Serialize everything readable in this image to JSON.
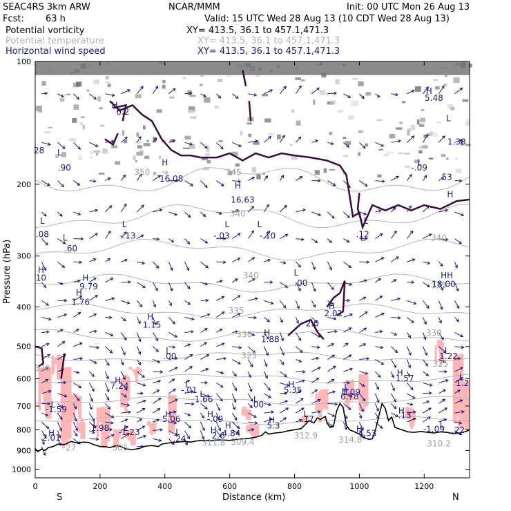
{
  "header": {
    "model": "SEAC4RS   3km ARW",
    "org": "NCAR/MMM",
    "init": "Init: 00 UTC Mon 26 Aug 13",
    "fcst_label": "Fcst:",
    "fcst_value": "63 h",
    "valid": "Valid: 15 UTC Wed 28 Aug 13 (10 CDT Wed 28 Aug 13)"
  },
  "fields": [
    {
      "name": "Potential vorticity",
      "xy": "XY= 413.5, 36.1 to 457.1,471.3",
      "color": "#000000"
    },
    {
      "name": "Potential temperature",
      "xy": "XY= 413.5, 36.1 to 457.1,471.3",
      "color": "#b4b4b4"
    },
    {
      "name": "Horizontal wind speed",
      "xy": "XY= 413.5, 36.1 to 457.1,471.3",
      "color": "#1a1a7a"
    }
  ],
  "colors": {
    "pv_contour": "#3d0a3d",
    "theta_contour": "#b4b4b4",
    "wind_vectors": "#1a1a7a",
    "shading": "#ffb6b6",
    "terrain": "#000000"
  },
  "chart_data": {
    "type": "vertical cross-section",
    "xlabel": "Distance (km)",
    "ylabel": "Pressure (hPa)",
    "xlim": [
      0,
      1340
    ],
    "ylim": [
      1050,
      100
    ],
    "y_scale": "log-pressure",
    "x_ticks": [
      "0",
      "200",
      "400",
      "600",
      "800",
      "1000",
      "1200"
    ],
    "y_ticks": [
      "100",
      "200",
      "300",
      "400",
      "500",
      "600",
      "700",
      "800",
      "900",
      "1000"
    ],
    "x_end_labels": {
      "left": "S",
      "right": "N"
    },
    "theta_contour_labels": [
      {
        "text": "350",
        "x": 330,
        "p": 190
      },
      {
        "text": "345",
        "x": 612,
        "p": 190
      },
      {
        "text": "340",
        "x": 625,
        "p": 240
      },
      {
        "text": "340",
        "x": 1245,
        "p": 275
      },
      {
        "text": "340",
        "x": 665,
        "p": 340
      },
      {
        "text": "335",
        "x": 1245,
        "p": 360
      },
      {
        "text": "335",
        "x": 620,
        "p": 415
      },
      {
        "text": "330",
        "x": 645,
        "p": 475
      },
      {
        "text": "330",
        "x": 1230,
        "p": 470
      },
      {
        "text": "325",
        "x": 660,
        "p": 535
      },
      {
        "text": "325",
        "x": 1250,
        "p": 560
      },
      {
        "text": "312.9",
        "x": 835,
        "p": 840
      },
      {
        "text": "314.8",
        "x": 972,
        "p": 860
      },
      {
        "text": "310.2",
        "x": 1245,
        "p": 880
      },
      {
        "text": "309.4",
        "x": 640,
        "p": 870
      },
      {
        "text": "311.8",
        "x": 550,
        "p": 875
      },
      {
        "text": "306",
        "x": 262,
        "p": 900
      },
      {
        "text": "326",
        "x": 22,
        "p": 575
      },
      {
        "text": "27",
        "x": 110,
        "p": 900
      }
    ],
    "extrema_labels": [
      {
        "text": "L",
        "x": 75,
        "p": 170
      },
      {
        "text": ".90",
        "x": 90,
        "p": 185
      },
      {
        "text": "28",
        "x": 12,
        "p": 168
      },
      {
        "text": "L",
        "x": 22,
        "p": 250
      },
      {
        "text": ".08",
        "x": 22,
        "p": 270
      },
      {
        "text": "L",
        "x": 92,
        "p": 275
      },
      {
        "text": ".60",
        "x": 110,
        "p": 292
      },
      {
        "text": "L",
        "x": 275,
        "p": 255
      },
      {
        "text": "-.13",
        "x": 285,
        "p": 272
      },
      {
        "text": "H",
        "x": 400,
        "p": 180
      },
      {
        "text": "16.08",
        "x": 420,
        "p": 197
      },
      {
        "text": "H",
        "x": 625,
        "p": 205
      },
      {
        "text": "16.63",
        "x": 640,
        "p": 222
      },
      {
        "text": "L",
        "x": 592,
        "p": 255
      },
      {
        "text": "-.03",
        "x": 575,
        "p": 272
      },
      {
        "text": "L",
        "x": 692,
        "p": 255
      },
      {
        "text": "-.10",
        "x": 717,
        "p": 272
      },
      {
        "text": "L",
        "x": 1020,
        "p": 250
      },
      {
        "text": ".12",
        "x": 1010,
        "p": 270
      },
      {
        "text": "L",
        "x": 805,
        "p": 335
      },
      {
        "text": ".00",
        "x": 820,
        "p": 355
      },
      {
        "text": "H",
        "x": 18,
        "p": 330
      },
      {
        "text": "10",
        "x": 18,
        "p": 345
      },
      {
        "text": "H",
        "x": 155,
        "p": 345
      },
      {
        "text": "9.79",
        "x": 165,
        "p": 362
      },
      {
        "text": "H",
        "x": 135,
        "p": 375
      },
      {
        "text": "1.76",
        "x": 140,
        "p": 395
      },
      {
        "text": "H",
        "x": 355,
        "p": 430
      },
      {
        "text": "1.15",
        "x": 360,
        "p": 450
      },
      {
        "text": "H",
        "x": 915,
        "p": 405
      },
      {
        "text": "2.01",
        "x": 920,
        "p": 422
      },
      {
        "text": "2.0",
        "x": 855,
        "p": 446
      },
      {
        "text": "H",
        "x": 715,
        "p": 470
      },
      {
        "text": "1.88",
        "x": 725,
        "p": 488
      },
      {
        "text": "L",
        "x": 410,
        "p": 520
      },
      {
        "text": ".00",
        "x": 415,
        "p": 537
      },
      {
        "text": "L",
        "x": 1270,
        "p": 520
      },
      {
        "text": "1.22",
        "x": 1275,
        "p": 537
      },
      {
        "text": "H",
        "x": 1125,
        "p": 590
      },
      {
        "text": "1.57",
        "x": 1140,
        "p": 608
      },
      {
        "text": "L",
        "x": 1315,
        "p": 605
      },
      {
        "text": "1.2",
        "x": 1318,
        "p": 625
      },
      {
        "text": "H",
        "x": 255,
        "p": 615
      },
      {
        "text": "7.24",
        "x": 260,
        "p": 635
      },
      {
        "text": "L",
        "x": 470,
        "p": 630
      },
      {
        "text": "-.01",
        "x": 475,
        "p": 650
      },
      {
        "text": "L",
        "x": 515,
        "p": 665
      },
      {
        "text": "1.66",
        "x": 520,
        "p": 685
      },
      {
        "text": "H",
        "x": 790,
        "p": 630
      },
      {
        "text": "5.35",
        "x": 795,
        "p": 650
      },
      {
        "text": "L",
        "x": 960,
        "p": 640
      },
      {
        "text": "1.09",
        "x": 975,
        "p": 658
      },
      {
        "text": "H",
        "x": 955,
        "p": 655
      },
      {
        "text": "6.78",
        "x": 970,
        "p": 675
      },
      {
        "text": "L",
        "x": 680,
        "p": 685
      },
      {
        "text": ".00",
        "x": 685,
        "p": 705
      },
      {
        "text": "L",
        "x": 55,
        "p": 705
      },
      {
        "text": "-1.59",
        "x": 65,
        "p": 725
      },
      {
        "text": "H",
        "x": 410,
        "p": 745
      },
      {
        "text": "5.06",
        "x": 420,
        "p": 765
      },
      {
        "text": "H",
        "x": 540,
        "p": 745
      },
      {
        "text": "-.09",
        "x": 555,
        "p": 765
      },
      {
        "text": "L",
        "x": 835,
        "p": 745
      },
      {
        "text": ".17",
        "x": 840,
        "p": 765
      },
      {
        "text": "H",
        "x": 1130,
        "p": 730
      },
      {
        "text": ".13",
        "x": 1140,
        "p": 750
      },
      {
        "text": "H",
        "x": 730,
        "p": 770
      },
      {
        "text": "5.3",
        "x": 735,
        "p": 795
      },
      {
        "text": "L",
        "x": 185,
        "p": 785
      },
      {
        "text": "1.98",
        "x": 200,
        "p": 805
      },
      {
        "text": "L",
        "x": 280,
        "p": 805
      },
      {
        "text": "-1.23",
        "x": 290,
        "p": 825
      },
      {
        "text": "H",
        "x": 595,
        "p": 795
      },
      {
        "text": "H",
        "x": 550,
        "p": 815
      },
      {
        "text": "4.84",
        "x": 605,
        "p": 830
      },
      {
        "text": "2.6",
        "x": 565,
        "p": 840
      },
      {
        "text": "L",
        "x": 440,
        "p": 825
      },
      {
        "text": ".24",
        "x": 445,
        "p": 855
      },
      {
        "text": "L",
        "x": 1255,
        "p": 790
      },
      {
        "text": "-1.09",
        "x": 1230,
        "p": 810
      },
      {
        "text": ".22",
        "x": 1305,
        "p": 815
      },
      {
        "text": "H",
        "x": 1000,
        "p": 810
      },
      {
        "text": "4.53",
        "x": 1025,
        "p": 830
      },
      {
        "text": "H",
        "x": 50,
        "p": 830
      },
      {
        "text": "2.01",
        "x": 50,
        "p": 850
      },
      {
        "text": "L",
        "x": 1010,
        "p": 275
      },
      {
        "text": "L",
        "x": 1275,
        "p": 140
      },
      {
        "text": "1.38",
        "x": 1300,
        "p": 160
      },
      {
        "text": "H",
        "x": 1215,
        "p": 120
      },
      {
        "text": "5.48",
        "x": 1230,
        "p": 125
      },
      {
        "text": "L",
        "x": 1185,
        "p": 180
      },
      {
        "text": "-.09",
        "x": 1185,
        "p": 185
      },
      {
        "text": "HH",
        "x": 1270,
        "p": 340
      },
      {
        "text": "18.00",
        "x": 1260,
        "p": 357
      },
      {
        "text": "H",
        "x": 245,
        "p": 130
      },
      {
        "text": "6.2",
        "x": 270,
        "p": 135
      },
      {
        "text": "H",
        "x": 1280,
        "p": 215
      },
      {
        "text": "53",
        "x": 1270,
        "p": 195
      }
    ]
  }
}
